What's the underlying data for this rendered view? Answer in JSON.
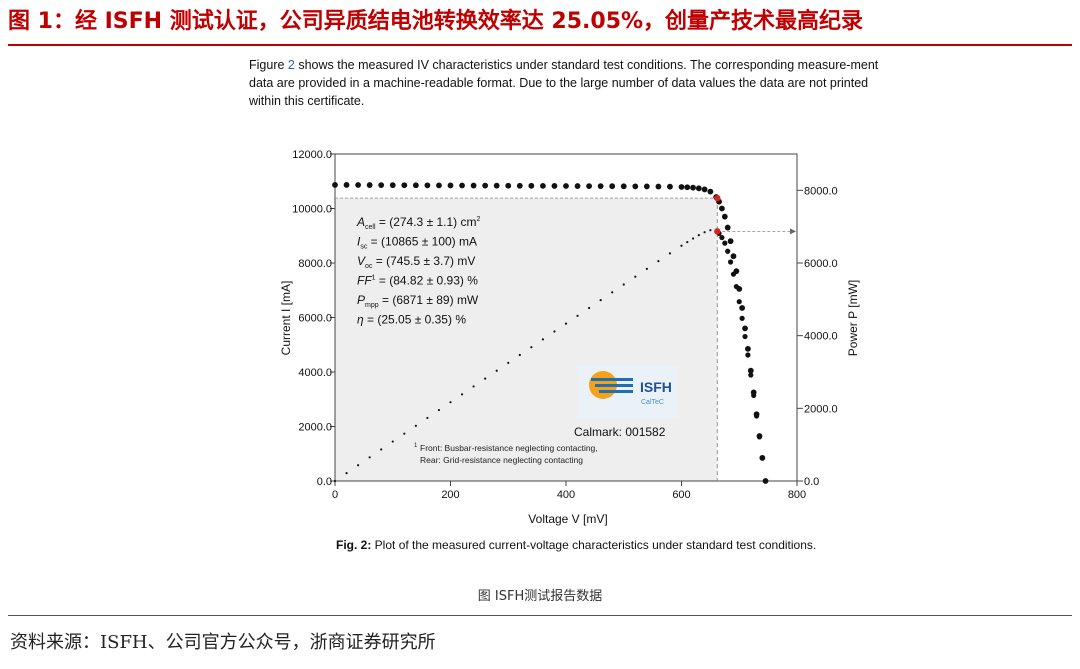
{
  "headline": "图 1：经 ISFH 测试认证，公司异质结电池转换效率达 25.05%，创量产技术最高纪录",
  "intro": {
    "before": "Figure ",
    "ref": "2",
    "after": " shows the measured IV characteristics under standard test conditions. The corresponding measure-ment data are provided in a machine-readable format. Due to the large number of data values the data are not printed within this certificate."
  },
  "annotations": [
    {
      "key": "area",
      "sym": "A",
      "sub": "cell",
      "sup": "",
      "text": " = (274.3 ± 1.1) cm",
      "unitsup": "2"
    },
    {
      "key": "isc",
      "sym": "I",
      "sub": "sc",
      "sup": "",
      "text": " = (10865 ± 100) mA",
      "unitsup": ""
    },
    {
      "key": "voc",
      "sym": "V",
      "sub": "oc",
      "sup": "",
      "text": " = (745.5 ± 3.7) mV",
      "unitsup": ""
    },
    {
      "key": "ff",
      "sym": "FF",
      "sub": "",
      "sup": "1",
      "text": " = (84.82 ± 0.93) %",
      "unitsup": ""
    },
    {
      "key": "pmpp",
      "sym": "P",
      "sub": "mpp",
      "sup": "",
      "text": " = (6871 ± 89) mW",
      "unitsup": ""
    },
    {
      "key": "eta",
      "sym": "η",
      "sub": "",
      "sup": "",
      "text": " = (25.05 ± 0.35) %",
      "unitsup": ""
    }
  ],
  "logo": {
    "name": "ISFH",
    "sub": "CalTeC"
  },
  "calmark": "Calmark: 001582",
  "footnote": {
    "mark": "1",
    "line1": "Front: Busbar-resistance neglecting contacting,",
    "line2": "Rear: Grid-resistance neglecting contacting"
  },
  "caption": {
    "bold": "Fig. 2:",
    "text": " Plot of the measured current-voltage characteristics under standard test conditions."
  },
  "sub_caption": "图 ISFH测试报告数据",
  "source": "资料来源：ISFH、公司官方公众号，浙商证券研究所",
  "chart_data": {
    "type": "scatter",
    "xlabel": "Voltage V [mV]",
    "ylabel": "Current I [mA]",
    "y2label": "Power P [mW]",
    "xlim": [
      0,
      800
    ],
    "ylim": [
      0,
      12000
    ],
    "y2lim": [
      0,
      9000
    ],
    "xticks": [
      "0",
      "200",
      "400",
      "600",
      "800"
    ],
    "yticks": [
      "0.0",
      "2000.0",
      "4000.0",
      "6000.0",
      "8000.0",
      "10000.0",
      "12000.0"
    ],
    "y2ticks": [
      "0.0",
      "2000.0",
      "4000.0",
      "6000.0",
      "8000.0"
    ],
    "isc": 10865,
    "voc": 745.5,
    "vmpp": 662,
    "impp": 10380,
    "pmpp": 6871,
    "series": [
      {
        "values": [
          [
            0,
            10865
          ],
          [
            20,
            10864
          ],
          [
            40,
            10862
          ],
          [
            60,
            10860
          ],
          [
            80,
            10858
          ],
          [
            100,
            10856
          ],
          [
            120,
            10854
          ],
          [
            140,
            10852
          ],
          [
            160,
            10850
          ],
          [
            180,
            10848
          ],
          [
            200,
            10846
          ],
          [
            220,
            10844
          ],
          [
            240,
            10842
          ],
          [
            260,
            10840
          ],
          [
            280,
            10838
          ],
          [
            300,
            10836
          ],
          [
            320,
            10834
          ],
          [
            340,
            10832
          ],
          [
            360,
            10830
          ],
          [
            380,
            10828
          ],
          [
            400,
            10826
          ],
          [
            420,
            10824
          ],
          [
            440,
            10822
          ],
          [
            460,
            10820
          ],
          [
            480,
            10818
          ],
          [
            500,
            10816
          ],
          [
            520,
            10813
          ],
          [
            540,
            10810
          ],
          [
            560,
            10806
          ],
          [
            580,
            10800
          ],
          [
            600,
            10790
          ],
          [
            610,
            10780
          ],
          [
            620,
            10765
          ],
          [
            630,
            10740
          ],
          [
            640,
            10700
          ],
          [
            650,
            10620
          ],
          [
            660,
            10420
          ],
          [
            665,
            10250
          ],
          [
            670,
            10000
          ],
          [
            675,
            9700
          ],
          [
            680,
            9300
          ],
          [
            685,
            8800
          ],
          [
            690,
            8250
          ],
          [
            695,
            7700
          ],
          [
            700,
            7050
          ],
          [
            705,
            6350
          ],
          [
            710,
            5600
          ],
          [
            715,
            4850
          ],
          [
            720,
            4050
          ],
          [
            725,
            3250
          ],
          [
            730,
            2450
          ],
          [
            735,
            1650
          ],
          [
            740,
            850
          ],
          [
            745.5,
            0
          ]
        ]
      }
    ]
  }
}
